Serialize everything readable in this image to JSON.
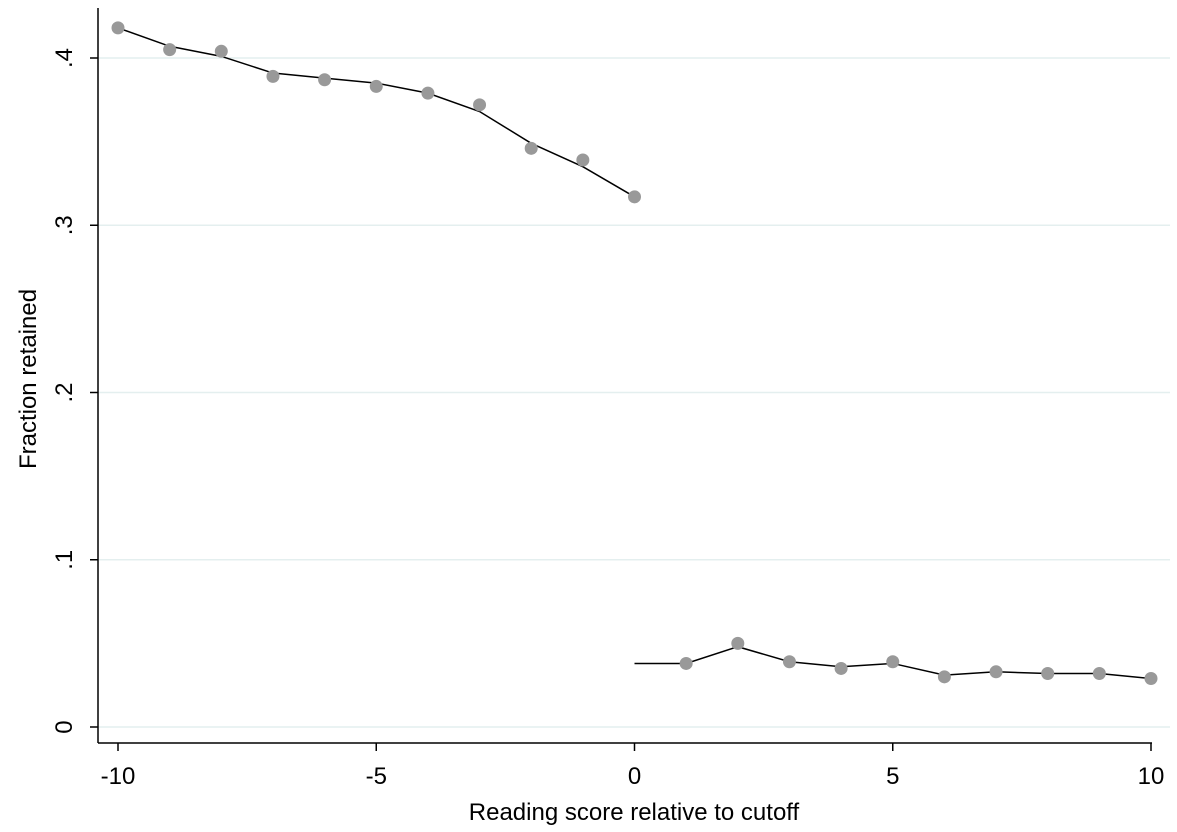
{
  "chart_data": {
    "type": "scatter",
    "xlabel": "Reading score relative to cutoff",
    "ylabel": "Fraction retained",
    "xlim": [
      -10,
      10
    ],
    "ylim": [
      0,
      0.4
    ],
    "xticks": [
      -10,
      -5,
      0,
      5,
      10
    ],
    "xtick_labels": [
      "-10",
      "-5",
      "0",
      "5",
      "10"
    ],
    "yticks": [
      0,
      0.1,
      0.2,
      0.3,
      0.4
    ],
    "ytick_labels": [
      "0",
      ".1",
      ".2",
      ".3",
      ".4"
    ],
    "grid": "horizontal",
    "legend": "none",
    "colors": {
      "points": "#999999",
      "fit": "#000000",
      "grid": "#e4efef",
      "axis": "#000000"
    },
    "points": {
      "x": [
        -10,
        -9,
        -8,
        -7,
        -6,
        -5,
        -4,
        -3,
        -2,
        -1,
        0,
        1,
        2,
        3,
        4,
        5,
        6,
        7,
        8,
        9,
        10
      ],
      "y": [
        0.418,
        0.405,
        0.404,
        0.389,
        0.387,
        0.383,
        0.379,
        0.372,
        0.346,
        0.339,
        0.317,
        0.038,
        0.05,
        0.039,
        0.035,
        0.039,
        0.03,
        0.033,
        0.032,
        0.032,
        0.029
      ]
    },
    "fit_lines": [
      {
        "x": [
          -10,
          -9,
          -8,
          -7,
          -6,
          -5,
          -4,
          -3,
          -2,
          -1,
          0
        ],
        "y": [
          0.418,
          0.407,
          0.401,
          0.391,
          0.388,
          0.385,
          0.379,
          0.368,
          0.349,
          0.335,
          0.317
        ]
      },
      {
        "x": [
          0,
          1,
          2,
          3,
          4,
          5,
          6,
          7,
          8,
          9,
          10
        ],
        "y": [
          0.038,
          0.038,
          0.048,
          0.039,
          0.036,
          0.038,
          0.031,
          0.033,
          0.032,
          0.032,
          0.029
        ]
      }
    ]
  }
}
